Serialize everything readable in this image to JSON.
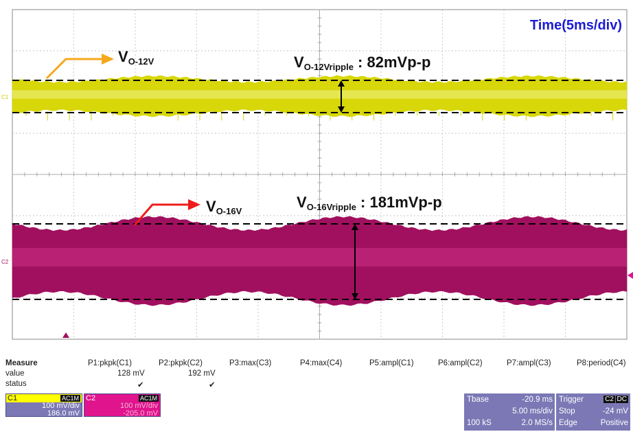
{
  "time_label": "Time(5ms/div)",
  "annotations": {
    "v12": {
      "main": "V",
      "sub": "O-12V"
    },
    "v16": {
      "main": "V",
      "sub": "O-16V"
    },
    "ripple12": {
      "main": "V",
      "sub": "O-12Vripple",
      "value": " : 82mVp-p"
    },
    "ripple16": {
      "main": "V",
      "sub": "O-16Vripple",
      "value": " : 181mVp-p"
    }
  },
  "measure": {
    "title": "Measure",
    "row_labels": [
      "value",
      "status"
    ],
    "params": [
      {
        "name": "P1:pkpk(C1)",
        "value": "128 mV",
        "status": "✔"
      },
      {
        "name": "P2:pkpk(C2)",
        "value": "192 mV",
        "status": "✔"
      },
      {
        "name": "P3:max(C3)",
        "value": "",
        "status": ""
      },
      {
        "name": "P4:max(C4)",
        "value": "",
        "status": ""
      },
      {
        "name": "P5:ampl(C1)",
        "value": "",
        "status": ""
      },
      {
        "name": "P6:ampl(C2)",
        "value": "",
        "status": ""
      },
      {
        "name": "P7:ampl(C3)",
        "value": "",
        "status": ""
      },
      {
        "name": "P8:period(C4)",
        "value": "",
        "status": ""
      }
    ]
  },
  "channels": {
    "c1": {
      "label": "C1",
      "coupling": "AC1M",
      "scale": "100 mV/div",
      "offset": "186.0 mV",
      "color": "#ffff00"
    },
    "c2": {
      "label": "C2",
      "coupling": "AC1M",
      "scale": "100 mV/div",
      "offset": "-205.0 mV",
      "color": "#e0148c"
    }
  },
  "timebase": {
    "label": "Tbase",
    "delay": "-20.9 ms",
    "scale": "5.00 ms/div",
    "samples": "100 kS",
    "rate": "2.0 MS/s"
  },
  "trigger": {
    "label": "Trigger",
    "source": "C2",
    "coupling": "DC",
    "mode": "Stop",
    "level": "-24 mV",
    "type": "Edge",
    "slope": "Positive"
  },
  "chart_data": {
    "type": "line",
    "title": "",
    "xlabel": "Time(5ms/div)",
    "ylabel": "",
    "grid": true,
    "x_divisions": 10,
    "y_divisions": 8,
    "series": [
      {
        "name": "V_O-12V",
        "color": "#d7d70a",
        "peak_to_peak_mV": 82,
        "measured_pkpk_mV": 128,
        "scale_mV_per_div": 100
      },
      {
        "name": "V_O-16V",
        "color": "#a0105e",
        "peak_to_peak_mV": 181,
        "measured_pkpk_mV": 192,
        "scale_mV_per_div": 100
      }
    ]
  }
}
